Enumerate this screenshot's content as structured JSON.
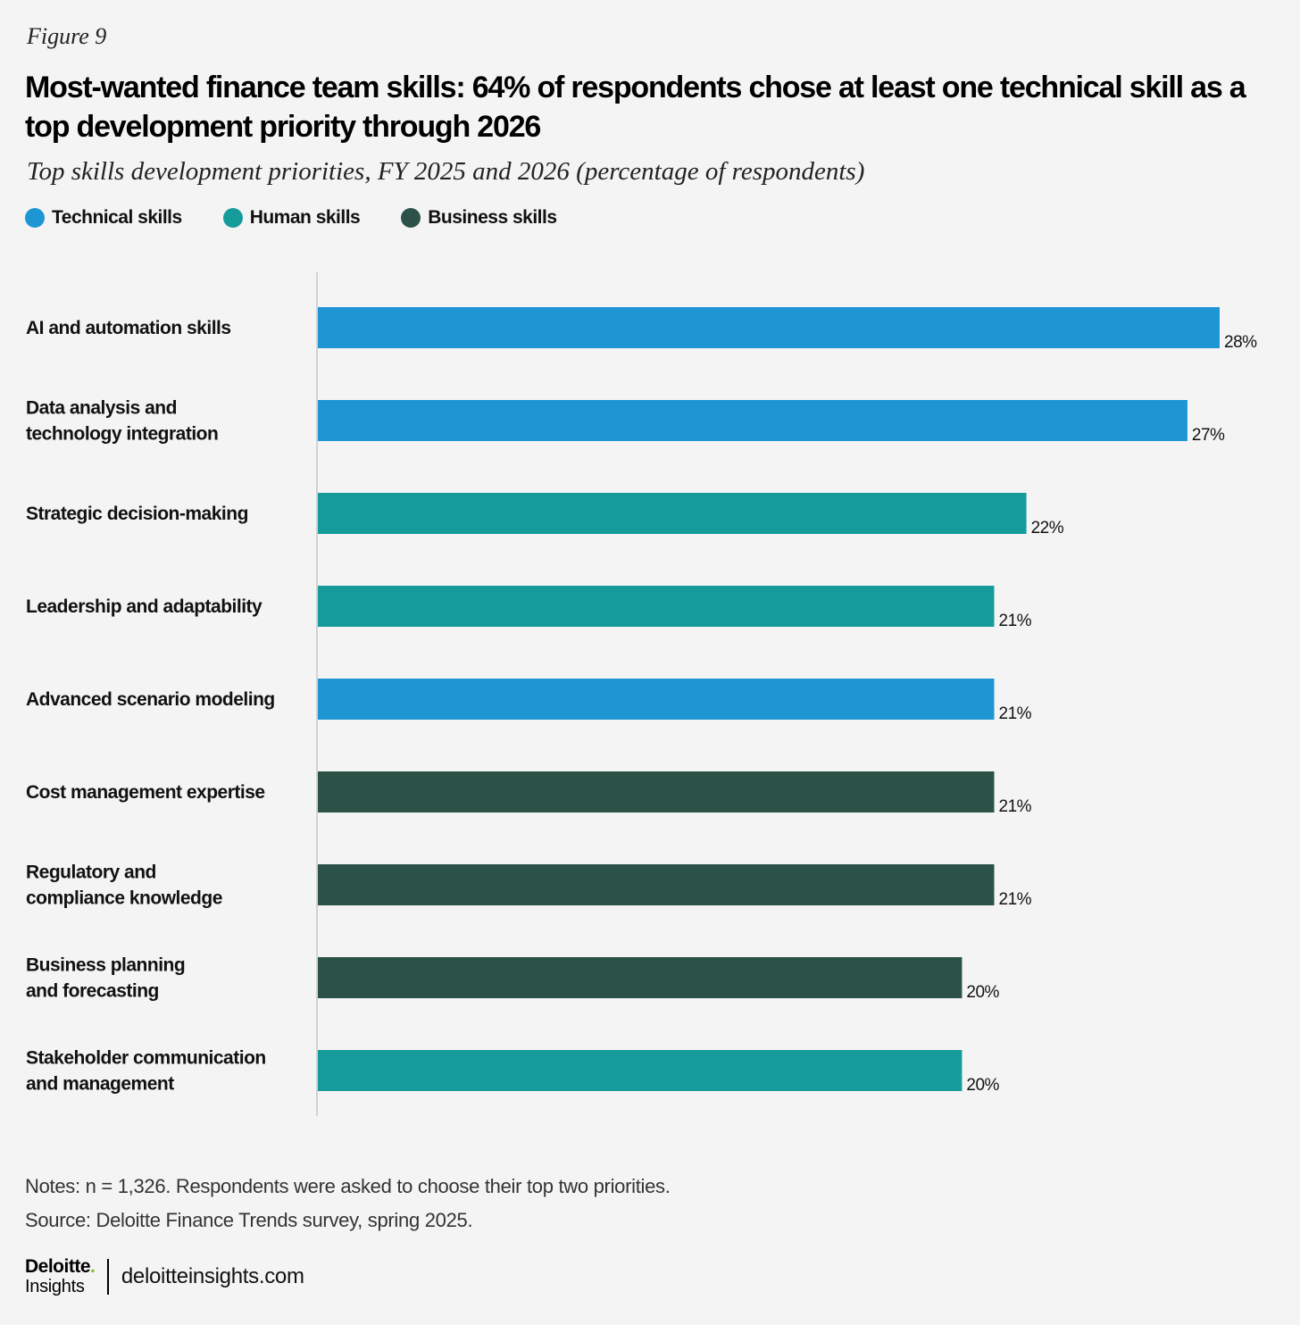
{
  "figure_label": "Figure 9",
  "title": "Most-wanted finance team skills: 64% of respondents chose at least one technical skill as a top development priority through 2026",
  "subtitle": "Top skills development priorities, FY 2025 and 2026 (percentage of respondents)",
  "legend": [
    {
      "label": "Technical skills",
      "color": "#1e96d4"
    },
    {
      "label": "Human skills",
      "color": "#169b9b"
    },
    {
      "label": "Business skills",
      "color": "#2c5247"
    }
  ],
  "chart_data": {
    "type": "bar",
    "orientation": "horizontal",
    "title": "",
    "xlabel": "",
    "ylabel": "",
    "grid": false,
    "legend_position": "top-left",
    "xlim": [
      0,
      28
    ],
    "categories": [
      [
        "AI and automation skills"
      ],
      [
        "Data analysis and",
        "technology integration"
      ],
      [
        "Strategic decision-making"
      ],
      [
        "Leadership and adaptability"
      ],
      [
        "Advanced scenario modeling"
      ],
      [
        "Cost management expertise"
      ],
      [
        "Regulatory and",
        "compliance knowledge"
      ],
      [
        "Business planning",
        "and forecasting"
      ],
      [
        "Stakeholder communication",
        "and management"
      ]
    ],
    "values": [
      28,
      27,
      22,
      21,
      21,
      21,
      21,
      20,
      20
    ],
    "labels": [
      "28%",
      "27%",
      "22%",
      "21%",
      "21%",
      "21%",
      "21%",
      "20%",
      "20%"
    ],
    "groups": [
      "Technical skills",
      "Technical skills",
      "Human skills",
      "Human skills",
      "Technical skills",
      "Business skills",
      "Business skills",
      "Business skills",
      "Human skills"
    ]
  },
  "notes": "Notes: n = 1,326. Respondents were asked to choose their top two priorities.",
  "source": "Source: Deloitte Finance Trends survey, spring 2025.",
  "footer": {
    "logo_top": "Deloitte",
    "logo_dot": ".",
    "logo_bottom": "Insights",
    "url": "deloitteinsights.com"
  }
}
